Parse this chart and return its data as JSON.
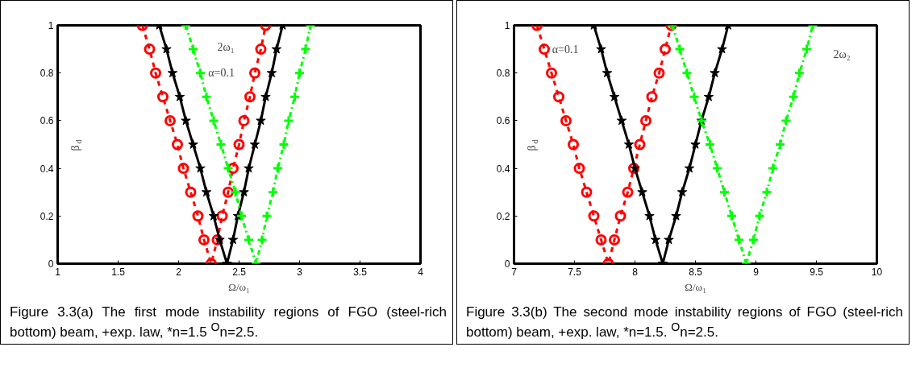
{
  "chart_data": [
    {
      "type": "line",
      "xlabel": "Ω/ω₁",
      "ylabel": "β$_{d}$",
      "xlim": [
        1,
        4
      ],
      "ylim": [
        0,
        1
      ],
      "xticks": [
        1,
        1.5,
        2,
        2.5,
        3,
        3.5,
        4
      ],
      "yticks": [
        0,
        0.2,
        0.4,
        0.6,
        0.8,
        1
      ],
      "series": [
        {
          "color": "#ff0000",
          "marker": "circle",
          "line_style": "dashed",
          "x": [
            1.7,
            1.76,
            1.81,
            1.87,
            1.93,
            1.99,
            2.04,
            2.1,
            2.16,
            2.21,
            2.27,
            2.32,
            2.36,
            2.41,
            2.45,
            2.5,
            2.54,
            2.59,
            2.63,
            2.68,
            2.72
          ],
          "values": [
            1,
            0.9,
            0.8,
            0.7,
            0.6,
            0.5,
            0.4,
            0.3,
            0.2,
            0.1,
            0,
            0.1,
            0.2,
            0.3,
            0.4,
            0.5,
            0.6,
            0.7,
            0.8,
            0.9,
            1
          ]
        },
        {
          "color": "#000000",
          "marker": "star",
          "line_style": "solid",
          "x": [
            1.84,
            1.9,
            1.95,
            2.01,
            2.06,
            2.12,
            2.18,
            2.23,
            2.29,
            2.34,
            2.4,
            2.45,
            2.49,
            2.54,
            2.58,
            2.63,
            2.68,
            2.72,
            2.77,
            2.81,
            2.86
          ],
          "values": [
            1,
            0.9,
            0.8,
            0.7,
            0.6,
            0.5,
            0.4,
            0.3,
            0.2,
            0.1,
            0,
            0.1,
            0.2,
            0.3,
            0.4,
            0.5,
            0.6,
            0.7,
            0.8,
            0.9,
            1
          ]
        },
        {
          "color": "#00ff00",
          "marker": "cross",
          "line_style": "dashdot",
          "x": [
            2.06,
            2.12,
            2.18,
            2.23,
            2.29,
            2.35,
            2.41,
            2.47,
            2.52,
            2.58,
            2.64,
            2.69,
            2.73,
            2.78,
            2.82,
            2.87,
            2.91,
            2.96,
            3.0,
            3.05,
            3.09
          ],
          "values": [
            1,
            0.9,
            0.8,
            0.7,
            0.6,
            0.5,
            0.4,
            0.3,
            0.2,
            0.1,
            0,
            0.1,
            0.2,
            0.3,
            0.4,
            0.5,
            0.6,
            0.7,
            0.8,
            0.9,
            1
          ]
        }
      ],
      "annotations": [
        "2ω₁",
        "α=0.1",
        "Figure 3.3(a) The first mode instability regions of FGO (steel-rich bottom) beam, +exp. law, *n=1.5 $^{O}$n=2.5."
      ]
    },
    {
      "type": "line",
      "xlabel": "Ω/ω₁",
      "ylabel": "β$_{d}$",
      "xlim": [
        7,
        10
      ],
      "ylim": [
        0,
        1
      ],
      "xticks": [
        7,
        7.5,
        8,
        8.5,
        9,
        9.5,
        10
      ],
      "yticks": [
        0,
        0.2,
        0.4,
        0.6,
        0.8,
        1
      ],
      "series": [
        {
          "color": "#ff0000",
          "marker": "circle",
          "line_style": "dashed",
          "x": [
            7.19,
            7.25,
            7.31,
            7.37,
            7.43,
            7.49,
            7.54,
            7.6,
            7.66,
            7.72,
            7.78,
            7.83,
            7.88,
            7.94,
            7.99,
            8.04,
            8.09,
            8.14,
            8.2,
            8.25,
            8.3
          ],
          "values": [
            1,
            0.9,
            0.8,
            0.7,
            0.6,
            0.5,
            0.4,
            0.3,
            0.2,
            0.1,
            0,
            0.1,
            0.2,
            0.3,
            0.4,
            0.5,
            0.6,
            0.7,
            0.8,
            0.9,
            1
          ]
        },
        {
          "color": "#000000",
          "marker": "star",
          "line_style": "solid",
          "x": [
            7.66,
            7.72,
            7.77,
            7.83,
            7.89,
            7.95,
            8.0,
            8.06,
            8.12,
            8.17,
            8.23,
            8.28,
            8.34,
            8.39,
            8.45,
            8.5,
            8.55,
            8.61,
            8.66,
            8.72,
            8.77
          ],
          "values": [
            1,
            0.9,
            0.8,
            0.7,
            0.6,
            0.5,
            0.4,
            0.3,
            0.2,
            0.1,
            0,
            0.1,
            0.2,
            0.3,
            0.4,
            0.5,
            0.6,
            0.7,
            0.8,
            0.9,
            1
          ]
        },
        {
          "color": "#00ff00",
          "marker": "cross",
          "line_style": "dashdot",
          "x": [
            8.31,
            8.37,
            8.43,
            8.49,
            8.55,
            8.62,
            8.68,
            8.74,
            8.8,
            8.86,
            8.92,
            8.98,
            9.03,
            9.09,
            9.14,
            9.2,
            9.25,
            9.31,
            9.36,
            9.42,
            9.47
          ],
          "values": [
            1,
            0.9,
            0.8,
            0.7,
            0.6,
            0.5,
            0.4,
            0.3,
            0.2,
            0.1,
            0,
            0.1,
            0.2,
            0.3,
            0.4,
            0.5,
            0.6,
            0.7,
            0.8,
            0.9,
            1
          ]
        }
      ],
      "annotations": [
        "α=0.1",
        "2ω₂",
        "Figure 3.3(b) The second mode instability regions of FGO (steel-rich bottom) beam, +exp. law, *n=1.5. $^{O}$n=2.5."
      ]
    }
  ]
}
